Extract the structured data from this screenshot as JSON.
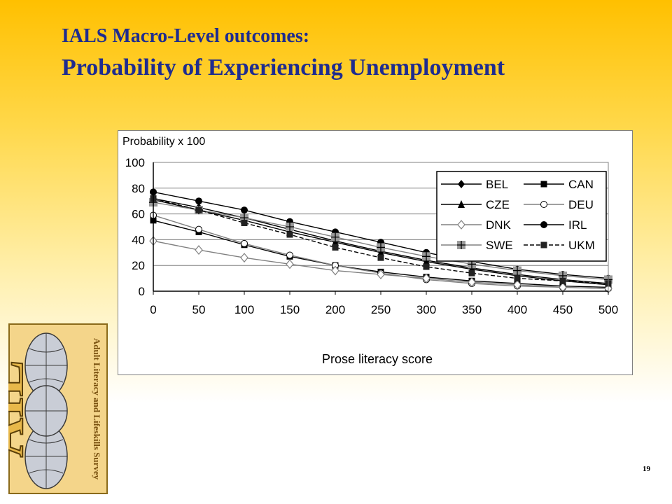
{
  "slide": {
    "title_line1": "IALS Macro-Level outcomes:",
    "title_line2": "Probability of Experiencing Unemployment",
    "page_number": "19",
    "title_color": "#1F2C8F"
  },
  "logo": {
    "letters": "AIL",
    "text": "Adult Literacy and Lifeskills Survey"
  },
  "chart_data": {
    "type": "line",
    "ylabel": "Probability x 100",
    "xlabel": "Prose literacy score",
    "x": [
      0,
      50,
      100,
      150,
      200,
      250,
      300,
      350,
      400,
      450,
      500
    ],
    "xticks": [
      "0",
      "50",
      "100",
      "150",
      "200",
      "250",
      "300",
      "350",
      "400",
      "450",
      "500"
    ],
    "yticks": [
      "0",
      "20",
      "40",
      "60",
      "80",
      "100"
    ],
    "ylim": [
      0,
      100
    ],
    "xlim": [
      0,
      500
    ],
    "grid": "horizontal",
    "legend_position": "top-right",
    "series": [
      {
        "name": "BEL",
        "marker": "diamond-filled",
        "color": "#000000",
        "values": [
          72,
          65,
          57,
          48,
          39,
          31,
          24,
          18,
          13,
          9,
          6
        ]
      },
      {
        "name": "CAN",
        "marker": "square-filled",
        "color": "#000000",
        "values": [
          55,
          46,
          36,
          27,
          20,
          15,
          11,
          8,
          6,
          4,
          3
        ]
      },
      {
        "name": "CZE",
        "marker": "triangle-filled",
        "color": "#000000",
        "values": [
          71,
          63,
          55,
          46,
          38,
          30,
          23,
          17,
          12,
          8,
          5
        ]
      },
      {
        "name": "DEU",
        "marker": "circle-open",
        "color": "#808080",
        "values": [
          59,
          48,
          37,
          28,
          20,
          14,
          9,
          6,
          4,
          3,
          2
        ]
      },
      {
        "name": "DNK",
        "marker": "diamond-open",
        "color": "#808080",
        "values": [
          39,
          32,
          26,
          21,
          16,
          13,
          10,
          7,
          5,
          3,
          2
        ]
      },
      {
        "name": "IRL",
        "marker": "circle-filled",
        "color": "#000000",
        "values": [
          77,
          70,
          63,
          54,
          46,
          38,
          30,
          23,
          17,
          13,
          10
        ]
      },
      {
        "name": "SWE",
        "marker": "plus-gray",
        "color": "#808080",
        "values": [
          69,
          63,
          57,
          50,
          42,
          34,
          27,
          21,
          16,
          12,
          9
        ]
      },
      {
        "name": "UKM",
        "marker": "square-dashed",
        "color": "#000000",
        "values": [
          72,
          63,
          53,
          44,
          34,
          26,
          19,
          14,
          10,
          8,
          6
        ]
      }
    ]
  }
}
